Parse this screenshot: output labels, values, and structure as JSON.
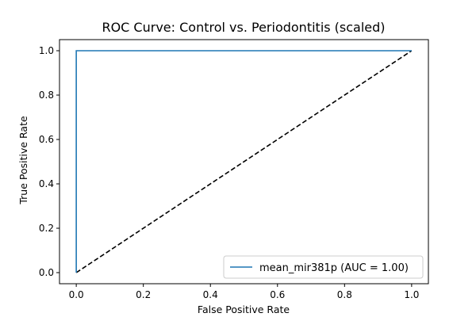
{
  "chart_data": {
    "type": "line",
    "title": "ROC Curve: Control vs. Periodontitis (scaled)",
    "xlabel": "False Positive Rate",
    "ylabel": "True Positive Rate",
    "xlim": [
      -0.05,
      1.05
    ],
    "ylim": [
      -0.05,
      1.05
    ],
    "xticks": [
      0.0,
      0.2,
      0.4,
      0.6,
      0.8,
      1.0
    ],
    "yticks": [
      0.0,
      0.2,
      0.4,
      0.6,
      0.8,
      1.0
    ],
    "xtick_labels": [
      "0.0",
      "0.2",
      "0.4",
      "0.6",
      "0.8",
      "1.0"
    ],
    "ytick_labels": [
      "0.0",
      "0.2",
      "0.4",
      "0.6",
      "0.8",
      "1.0"
    ],
    "grid": false,
    "legend_placement": "lower-right",
    "series": [
      {
        "name": "mean_mir381p (AUC = 1.00)",
        "color": "#1f77b4",
        "style": "solid",
        "x": [
          0.0,
          0.0,
          1.0
        ],
        "y": [
          0.0,
          1.0,
          1.0
        ]
      },
      {
        "color": "#000000",
        "style": "dashed",
        "x": [
          0.0,
          1.0
        ],
        "y": [
          0.0,
          1.0
        ]
      }
    ]
  }
}
